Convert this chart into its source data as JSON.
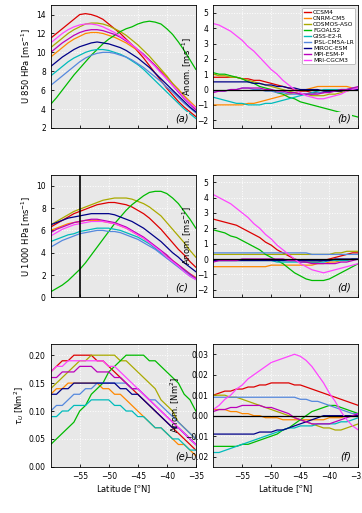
{
  "lat": [
    -60,
    -59,
    -58,
    -57,
    -56,
    -55,
    -54,
    -53,
    -52,
    -51,
    -50,
    -49,
    -48,
    -47,
    -46,
    -45,
    -44,
    -43,
    -42,
    -41,
    -40,
    -39,
    -38,
    -37,
    -36,
    -35
  ],
  "models": [
    "CCSM4",
    "CNRM-CM5",
    "COSMOS-ASO",
    "FGOALS2",
    "GISS-E2-R",
    "IPSL-CM5A-LR",
    "MIROC-ESM",
    "MPI-ESM-P",
    "MRI-CGCM3"
  ],
  "colors": [
    "#dd0000",
    "#ff8800",
    "#aaaa00",
    "#00bb00",
    "#00bbbb",
    "#5588dd",
    "#000088",
    "#bb00bb",
    "#ff44ff"
  ],
  "u850": {
    "CCSM4": [
      11.5,
      12.0,
      12.5,
      13.0,
      13.5,
      14.0,
      14.1,
      14.0,
      13.8,
      13.5,
      13.0,
      12.5,
      12.0,
      11.4,
      10.8,
      10.1,
      9.4,
      8.6,
      7.8,
      7.0,
      6.2,
      5.5,
      4.8,
      4.2,
      3.7,
      3.2
    ],
    "CNRM-CM5": [
      9.5,
      10.0,
      10.5,
      11.0,
      11.4,
      11.7,
      12.0,
      12.1,
      12.1,
      12.0,
      11.8,
      11.6,
      11.3,
      11.0,
      10.6,
      10.2,
      9.7,
      9.2,
      8.6,
      8.0,
      7.4,
      6.7,
      6.1,
      5.4,
      4.8,
      4.2
    ],
    "COSMOS-ASO": [
      10.5,
      11.0,
      11.5,
      12.0,
      12.4,
      12.7,
      13.0,
      13.1,
      13.1,
      13.0,
      12.8,
      12.5,
      12.2,
      11.8,
      11.3,
      10.8,
      10.2,
      9.6,
      8.9,
      8.2,
      7.5,
      6.7,
      6.0,
      5.3,
      4.6,
      4.0
    ],
    "FGOALS2": [
      4.5,
      5.2,
      6.0,
      6.8,
      7.6,
      8.3,
      9.0,
      9.7,
      10.3,
      10.9,
      11.4,
      11.8,
      12.2,
      12.5,
      12.7,
      13.0,
      13.2,
      13.3,
      13.2,
      13.0,
      12.5,
      11.9,
      11.1,
      10.2,
      9.2,
      8.2
    ],
    "GISS-E2-R": [
      7.5,
      8.0,
      8.5,
      9.0,
      9.4,
      9.7,
      10.0,
      10.2,
      10.3,
      10.3,
      10.2,
      10.0,
      9.8,
      9.5,
      9.1,
      8.7,
      8.2,
      7.6,
      7.0,
      6.4,
      5.8,
      5.2,
      4.6,
      4.0,
      3.5,
      3.0
    ],
    "IPSL-CM5A-LR": [
      6.5,
      7.0,
      7.5,
      8.0,
      8.5,
      9.0,
      9.4,
      9.7,
      9.9,
      10.0,
      10.0,
      9.9,
      9.7,
      9.5,
      9.2,
      8.8,
      8.4,
      7.9,
      7.4,
      6.9,
      6.3,
      5.8,
      5.2,
      4.6,
      4.1,
      3.6
    ],
    "MIROC-ESM": [
      8.5,
      9.0,
      9.5,
      9.9,
      10.3,
      10.6,
      10.8,
      11.0,
      11.1,
      11.0,
      10.9,
      10.7,
      10.5,
      10.2,
      9.8,
      9.4,
      8.9,
      8.4,
      7.8,
      7.2,
      6.6,
      6.0,
      5.4,
      4.8,
      4.2,
      3.7
    ],
    "MPI-ESM-P": [
      10.0,
      10.5,
      11.0,
      11.4,
      11.8,
      12.1,
      12.3,
      12.4,
      12.4,
      12.3,
      12.1,
      11.9,
      11.6,
      11.2,
      10.8,
      10.3,
      9.8,
      9.2,
      8.6,
      7.9,
      7.2,
      6.5,
      5.8,
      5.1,
      4.5,
      3.9
    ],
    "MRI-CGCM3": [
      11.0,
      11.5,
      12.0,
      12.4,
      12.7,
      12.9,
      13.0,
      13.0,
      12.9,
      12.7,
      12.4,
      12.1,
      11.7,
      11.3,
      10.8,
      10.3,
      9.7,
      9.1,
      8.5,
      7.8,
      7.2,
      6.5,
      5.9,
      5.2,
      4.6,
      4.1
    ]
  },
  "u850_anom": {
    "CCSM4": [
      0.8,
      0.8,
      0.8,
      0.8,
      0.8,
      0.7,
      0.7,
      0.6,
      0.6,
      0.5,
      0.4,
      0.3,
      0.2,
      0.1,
      0.0,
      -0.1,
      -0.1,
      -0.2,
      -0.2,
      -0.2,
      -0.1,
      -0.1,
      -0.1,
      -0.0,
      0.0,
      0.1
    ],
    "CNRM-CM5": [
      -1.0,
      -1.0,
      -1.0,
      -1.0,
      -1.0,
      -1.0,
      -0.9,
      -0.9,
      -0.8,
      -0.7,
      -0.6,
      -0.5,
      -0.4,
      -0.3,
      -0.2,
      -0.1,
      0.0,
      0.1,
      0.2,
      0.2,
      0.2,
      0.2,
      0.2,
      0.2,
      0.1,
      0.1
    ],
    "COSMOS-ASO": [
      1.0,
      0.9,
      0.9,
      0.8,
      0.8,
      0.7,
      0.6,
      0.5,
      0.4,
      0.3,
      0.2,
      0.1,
      -0.0,
      -0.1,
      -0.2,
      -0.3,
      -0.3,
      -0.4,
      -0.4,
      -0.4,
      -0.3,
      -0.3,
      -0.2,
      -0.1,
      -0.0,
      0.1
    ],
    "FGOALS2": [
      1.1,
      1.0,
      1.0,
      0.9,
      0.8,
      0.7,
      0.5,
      0.4,
      0.2,
      0.1,
      -0.0,
      -0.2,
      -0.3,
      -0.5,
      -0.6,
      -0.8,
      -0.9,
      -1.0,
      -1.1,
      -1.2,
      -1.3,
      -1.4,
      -1.5,
      -1.6,
      -1.7,
      -1.8
    ],
    "GISS-E2-R": [
      -0.5,
      -0.6,
      -0.7,
      -0.8,
      -0.9,
      -0.9,
      -1.0,
      -1.0,
      -1.0,
      -0.9,
      -0.9,
      -0.8,
      -0.7,
      -0.6,
      -0.5,
      -0.4,
      -0.3,
      -0.2,
      -0.1,
      -0.0,
      0.0,
      0.0,
      0.0,
      0.0,
      0.0,
      0.0
    ],
    "IPSL-CM5A-LR": [
      -0.1,
      -0.1,
      -0.1,
      -0.0,
      0.0,
      0.1,
      0.1,
      0.0,
      0.0,
      -0.1,
      -0.1,
      -0.2,
      -0.2,
      -0.3,
      -0.3,
      -0.3,
      -0.3,
      -0.3,
      -0.2,
      -0.2,
      -0.1,
      -0.1,
      -0.0,
      0.0,
      0.1,
      0.1
    ],
    "MIROC-ESM": [
      0.5,
      0.5,
      0.5,
      0.5,
      0.5,
      0.5,
      0.5,
      0.4,
      0.4,
      0.3,
      0.3,
      0.2,
      0.2,
      0.1,
      0.1,
      0.0,
      0.0,
      -0.0,
      -0.0,
      -0.1,
      -0.1,
      -0.1,
      -0.1,
      -0.0,
      0.0,
      0.0
    ],
    "MPI-ESM-P": [
      -0.2,
      -0.1,
      -0.1,
      -0.0,
      0.0,
      0.1,
      0.1,
      0.1,
      0.1,
      0.0,
      0.0,
      -0.1,
      -0.1,
      -0.2,
      -0.2,
      -0.3,
      -0.3,
      -0.3,
      -0.3,
      -0.2,
      -0.2,
      -0.1,
      -0.0,
      0.0,
      0.1,
      0.2
    ],
    "MRI-CGCM3": [
      4.3,
      4.2,
      4.0,
      3.8,
      3.5,
      3.2,
      2.8,
      2.5,
      2.1,
      1.7,
      1.3,
      1.0,
      0.6,
      0.3,
      0.0,
      -0.2,
      -0.4,
      -0.5,
      -0.6,
      -0.6,
      -0.5,
      -0.4,
      -0.3,
      -0.1,
      0.0,
      0.1
    ]
  },
  "u1000": {
    "CCSM4": [
      6.3,
      6.6,
      6.9,
      7.2,
      7.5,
      7.7,
      7.9,
      8.1,
      8.3,
      8.4,
      8.5,
      8.5,
      8.4,
      8.3,
      8.1,
      7.8,
      7.5,
      7.1,
      6.6,
      6.1,
      5.5,
      4.9,
      4.3,
      3.8,
      3.2,
      2.7
    ],
    "CNRM-CM5": [
      6.0,
      6.2,
      6.4,
      6.6,
      6.7,
      6.8,
      6.9,
      6.9,
      6.9,
      6.8,
      6.7,
      6.6,
      6.4,
      6.2,
      5.9,
      5.6,
      5.3,
      4.9,
      4.5,
      4.1,
      3.7,
      3.3,
      2.9,
      2.5,
      2.1,
      1.8
    ],
    "COSMOS-ASO": [
      6.5,
      6.8,
      7.1,
      7.4,
      7.7,
      7.9,
      8.1,
      8.3,
      8.5,
      8.7,
      8.8,
      8.9,
      8.9,
      8.9,
      8.8,
      8.6,
      8.4,
      8.1,
      7.7,
      7.3,
      6.7,
      6.1,
      5.5,
      4.9,
      4.2,
      3.6
    ],
    "FGOALS2": [
      0.5,
      0.8,
      1.1,
      1.5,
      2.0,
      2.5,
      3.1,
      3.8,
      4.5,
      5.2,
      5.9,
      6.6,
      7.2,
      7.8,
      8.3,
      8.7,
      9.1,
      9.4,
      9.5,
      9.5,
      9.3,
      8.9,
      8.4,
      7.7,
      7.0,
      6.2
    ],
    "GISS-E2-R": [
      5.0,
      5.2,
      5.4,
      5.6,
      5.7,
      5.9,
      6.0,
      6.1,
      6.2,
      6.2,
      6.2,
      6.1,
      6.0,
      5.8,
      5.6,
      5.4,
      5.1,
      4.8,
      4.4,
      4.0,
      3.6,
      3.2,
      2.8,
      2.4,
      2.0,
      1.7
    ],
    "IPSL-CM5A-LR": [
      4.5,
      4.8,
      5.1,
      5.3,
      5.5,
      5.7,
      5.8,
      5.9,
      6.0,
      6.0,
      5.9,
      5.9,
      5.8,
      5.6,
      5.4,
      5.2,
      4.9,
      4.6,
      4.3,
      3.9,
      3.5,
      3.1,
      2.7,
      2.3,
      1.9,
      1.6
    ],
    "MIROC-ESM": [
      6.5,
      6.7,
      6.9,
      7.1,
      7.2,
      7.3,
      7.4,
      7.5,
      7.5,
      7.5,
      7.5,
      7.4,
      7.2,
      7.0,
      6.8,
      6.5,
      6.2,
      5.8,
      5.4,
      5.0,
      4.5,
      4.0,
      3.6,
      3.1,
      2.7,
      2.3
    ],
    "MPI-ESM-P": [
      5.8,
      6.1,
      6.3,
      6.5,
      6.7,
      6.8,
      6.9,
      7.0,
      7.0,
      6.9,
      6.8,
      6.7,
      6.5,
      6.3,
      6.0,
      5.7,
      5.4,
      5.0,
      4.6,
      4.2,
      3.8,
      3.3,
      2.9,
      2.5,
      2.1,
      1.7
    ],
    "MRI-CGCM3": [
      5.5,
      5.8,
      6.1,
      6.3,
      6.5,
      6.6,
      6.7,
      6.8,
      6.8,
      6.8,
      6.7,
      6.6,
      6.4,
      6.2,
      5.9,
      5.6,
      5.3,
      4.9,
      4.5,
      4.1,
      3.6,
      3.2,
      2.8,
      2.3,
      1.9,
      1.6
    ]
  },
  "u1000_anom": {
    "CCSM4": [
      2.6,
      2.5,
      2.4,
      2.3,
      2.2,
      2.0,
      1.8,
      1.6,
      1.4,
      1.1,
      0.9,
      0.6,
      0.4,
      0.2,
      0.0,
      -0.1,
      -0.2,
      -0.2,
      -0.2,
      -0.1,
      0.0,
      0.1,
      0.2,
      0.3,
      0.4,
      0.4
    ],
    "CNRM-CM5": [
      -0.5,
      -0.5,
      -0.5,
      -0.5,
      -0.5,
      -0.5,
      -0.5,
      -0.5,
      -0.5,
      -0.5,
      -0.4,
      -0.4,
      -0.4,
      -0.4,
      -0.4,
      -0.4,
      -0.4,
      -0.4,
      -0.3,
      -0.3,
      -0.2,
      -0.2,
      -0.1,
      -0.1,
      0.0,
      0.0
    ],
    "COSMOS-ASO": [
      0.3,
      0.3,
      0.3,
      0.3,
      0.3,
      0.3,
      0.3,
      0.3,
      0.3,
      0.3,
      0.3,
      0.3,
      0.3,
      0.3,
      0.3,
      0.3,
      0.3,
      0.3,
      0.3,
      0.3,
      0.3,
      0.4,
      0.4,
      0.5,
      0.5,
      0.5
    ],
    "FGOALS2": [
      1.9,
      1.8,
      1.7,
      1.5,
      1.4,
      1.2,
      1.0,
      0.8,
      0.6,
      0.3,
      0.1,
      -0.1,
      -0.3,
      -0.6,
      -0.9,
      -1.1,
      -1.3,
      -1.4,
      -1.4,
      -1.4,
      -1.3,
      -1.1,
      -0.9,
      -0.7,
      -0.5,
      -0.3
    ],
    "GISS-E2-R": [
      -0.1,
      -0.1,
      -0.1,
      -0.1,
      -0.1,
      -0.1,
      -0.1,
      -0.1,
      -0.1,
      -0.1,
      -0.1,
      -0.2,
      -0.2,
      -0.2,
      -0.2,
      -0.2,
      -0.2,
      -0.2,
      -0.2,
      -0.2,
      -0.1,
      -0.1,
      -0.1,
      -0.1,
      -0.0,
      0.0
    ],
    "IPSL-CM5A-LR": [
      0.4,
      0.4,
      0.4,
      0.4,
      0.4,
      0.4,
      0.4,
      0.4,
      0.4,
      0.4,
      0.4,
      0.4,
      0.4,
      0.4,
      0.4,
      0.4,
      0.4,
      0.3,
      0.3,
      0.3,
      0.3,
      0.3,
      0.3,
      0.3,
      0.3,
      0.3
    ],
    "MIROC-ESM": [
      -0.1,
      -0.1,
      -0.1,
      -0.1,
      -0.1,
      -0.1,
      -0.1,
      -0.1,
      -0.1,
      -0.1,
      -0.1,
      -0.1,
      -0.1,
      -0.1,
      -0.1,
      -0.1,
      -0.1,
      -0.1,
      -0.1,
      -0.1,
      -0.1,
      0.0,
      0.0,
      0.0,
      0.0,
      0.0
    ],
    "MPI-ESM-P": [
      -0.2,
      -0.1,
      -0.1,
      -0.1,
      -0.1,
      -0.0,
      0.0,
      0.0,
      0.0,
      0.0,
      0.0,
      0.0,
      -0.0,
      -0.1,
      -0.1,
      -0.2,
      -0.2,
      -0.3,
      -0.3,
      -0.3,
      -0.3,
      -0.3,
      -0.2,
      -0.2,
      -0.1,
      -0.0
    ],
    "MRI-CGCM3": [
      4.2,
      4.0,
      3.8,
      3.6,
      3.3,
      3.0,
      2.7,
      2.3,
      2.0,
      1.6,
      1.3,
      0.9,
      0.6,
      0.3,
      0.0,
      -0.3,
      -0.5,
      -0.7,
      -0.8,
      -0.9,
      -0.8,
      -0.7,
      -0.6,
      -0.5,
      -0.4,
      -0.3
    ]
  },
  "tau": {
    "CCSM4": [
      0.17,
      0.18,
      0.19,
      0.19,
      0.2,
      0.2,
      0.2,
      0.2,
      0.19,
      0.19,
      0.18,
      0.17,
      0.16,
      0.15,
      0.14,
      0.13,
      0.12,
      0.11,
      0.1,
      0.09,
      0.08,
      0.07,
      0.06,
      0.05,
      0.04,
      0.03
    ],
    "CNRM-CM5": [
      0.13,
      0.14,
      0.14,
      0.15,
      0.15,
      0.15,
      0.15,
      0.15,
      0.15,
      0.14,
      0.14,
      0.13,
      0.13,
      0.12,
      0.11,
      0.1,
      0.09,
      0.08,
      0.07,
      0.07,
      0.06,
      0.05,
      0.04,
      0.04,
      0.03,
      0.02
    ],
    "COSMOS-ASO": [
      0.14,
      0.15,
      0.16,
      0.17,
      0.18,
      0.19,
      0.19,
      0.2,
      0.2,
      0.2,
      0.2,
      0.2,
      0.19,
      0.19,
      0.18,
      0.17,
      0.16,
      0.15,
      0.14,
      0.12,
      0.11,
      0.1,
      0.08,
      0.07,
      0.06,
      0.05
    ],
    "FGOALS2": [
      0.04,
      0.05,
      0.06,
      0.07,
      0.08,
      0.1,
      0.11,
      0.13,
      0.14,
      0.15,
      0.17,
      0.18,
      0.19,
      0.2,
      0.2,
      0.2,
      0.2,
      0.19,
      0.19,
      0.18,
      0.17,
      0.16,
      0.15,
      0.13,
      0.12,
      0.1
    ],
    "GISS-E2-R": [
      0.09,
      0.09,
      0.1,
      0.1,
      0.11,
      0.11,
      0.11,
      0.12,
      0.12,
      0.12,
      0.12,
      0.11,
      0.11,
      0.1,
      0.1,
      0.09,
      0.09,
      0.08,
      0.07,
      0.07,
      0.06,
      0.05,
      0.05,
      0.04,
      0.03,
      0.03
    ],
    "IPSL-CM5A-LR": [
      0.1,
      0.11,
      0.11,
      0.12,
      0.13,
      0.13,
      0.14,
      0.14,
      0.15,
      0.15,
      0.15,
      0.15,
      0.15,
      0.15,
      0.14,
      0.14,
      0.13,
      0.12,
      0.12,
      0.11,
      0.1,
      0.09,
      0.08,
      0.07,
      0.06,
      0.05
    ],
    "MIROC-ESM": [
      0.13,
      0.13,
      0.14,
      0.14,
      0.15,
      0.15,
      0.15,
      0.15,
      0.15,
      0.15,
      0.15,
      0.15,
      0.14,
      0.14,
      0.13,
      0.13,
      0.12,
      0.11,
      0.1,
      0.09,
      0.08,
      0.07,
      0.07,
      0.06,
      0.05,
      0.04
    ],
    "MPI-ESM-P": [
      0.16,
      0.16,
      0.17,
      0.17,
      0.17,
      0.18,
      0.18,
      0.18,
      0.17,
      0.17,
      0.17,
      0.16,
      0.16,
      0.15,
      0.14,
      0.14,
      0.13,
      0.12,
      0.11,
      0.1,
      0.09,
      0.08,
      0.07,
      0.06,
      0.05,
      0.04
    ],
    "MRI-CGCM3": [
      0.17,
      0.18,
      0.18,
      0.19,
      0.19,
      0.19,
      0.19,
      0.19,
      0.19,
      0.19,
      0.18,
      0.18,
      0.17,
      0.16,
      0.15,
      0.14,
      0.13,
      0.12,
      0.11,
      0.1,
      0.09,
      0.08,
      0.07,
      0.06,
      0.05,
      0.04
    ]
  },
  "tau_anom": {
    "CCSM4": [
      0.01,
      0.011,
      0.012,
      0.012,
      0.013,
      0.013,
      0.014,
      0.014,
      0.015,
      0.015,
      0.016,
      0.016,
      0.016,
      0.016,
      0.015,
      0.015,
      0.014,
      0.013,
      0.012,
      0.011,
      0.01,
      0.009,
      0.008,
      0.007,
      0.006,
      0.005
    ],
    "CNRM-CM5": [
      0.003,
      0.003,
      0.003,
      0.002,
      0.002,
      0.001,
      0.001,
      0.0,
      0.0,
      -0.001,
      -0.001,
      -0.001,
      -0.002,
      -0.002,
      -0.002,
      -0.002,
      -0.002,
      -0.002,
      -0.002,
      -0.002,
      -0.001,
      -0.001,
      -0.001,
      0.0,
      0.0,
      0.001
    ],
    "COSMOS-ASO": [
      0.01,
      0.01,
      0.01,
      0.009,
      0.009,
      0.008,
      0.007,
      0.006,
      0.005,
      0.004,
      0.003,
      0.002,
      0.001,
      0.0,
      -0.001,
      -0.002,
      -0.003,
      -0.004,
      -0.005,
      -0.006,
      -0.006,
      -0.007,
      -0.007,
      -0.006,
      -0.005,
      -0.004
    ],
    "FGOALS2": [
      -0.015,
      -0.015,
      -0.015,
      -0.015,
      -0.015,
      -0.014,
      -0.014,
      -0.013,
      -0.012,
      -0.011,
      -0.01,
      -0.009,
      -0.007,
      -0.006,
      -0.004,
      -0.002,
      0.0,
      0.002,
      0.003,
      0.004,
      0.005,
      0.005,
      0.004,
      0.003,
      0.002,
      0.001
    ],
    "GISS-E2-R": [
      -0.018,
      -0.018,
      -0.017,
      -0.016,
      -0.015,
      -0.014,
      -0.013,
      -0.012,
      -0.011,
      -0.01,
      -0.009,
      -0.008,
      -0.007,
      -0.006,
      -0.006,
      -0.005,
      -0.005,
      -0.005,
      -0.004,
      -0.004,
      -0.004,
      -0.004,
      -0.003,
      -0.003,
      -0.002,
      -0.001
    ],
    "IPSL-CM5A-LR": [
      0.009,
      0.009,
      0.009,
      0.009,
      0.009,
      0.009,
      0.009,
      0.009,
      0.009,
      0.009,
      0.009,
      0.009,
      0.009,
      0.009,
      0.009,
      0.008,
      0.008,
      0.007,
      0.007,
      0.006,
      0.005,
      0.004,
      0.003,
      0.002,
      0.001,
      0.001
    ],
    "MIROC-ESM": [
      -0.009,
      -0.009,
      -0.009,
      -0.009,
      -0.009,
      -0.009,
      -0.009,
      -0.009,
      -0.008,
      -0.008,
      -0.008,
      -0.007,
      -0.007,
      -0.006,
      -0.005,
      -0.004,
      -0.003,
      -0.002,
      -0.001,
      0.0,
      0.0,
      0.0,
      0.0,
      0.0,
      0.0,
      0.0
    ],
    "MPI-ESM-P": [
      0.002,
      0.003,
      0.003,
      0.004,
      0.004,
      0.005,
      0.005,
      0.005,
      0.005,
      0.004,
      0.004,
      0.003,
      0.002,
      0.001,
      -0.001,
      -0.002,
      -0.003,
      -0.004,
      -0.004,
      -0.004,
      -0.004,
      -0.003,
      -0.002,
      -0.001,
      0.0,
      0.001
    ],
    "MRI-CGCM3": [
      0.003,
      0.005,
      0.008,
      0.01,
      0.013,
      0.015,
      0.018,
      0.02,
      0.022,
      0.024,
      0.026,
      0.027,
      0.028,
      0.029,
      0.03,
      0.029,
      0.027,
      0.024,
      0.02,
      0.016,
      0.011,
      0.007,
      0.002,
      -0.002,
      -0.005,
      -0.007
    ]
  },
  "xlim": [
    -60,
    -35
  ],
  "xticks": [
    -55,
    -50,
    -45,
    -40,
    -35
  ],
  "background": "#e8e8e8"
}
